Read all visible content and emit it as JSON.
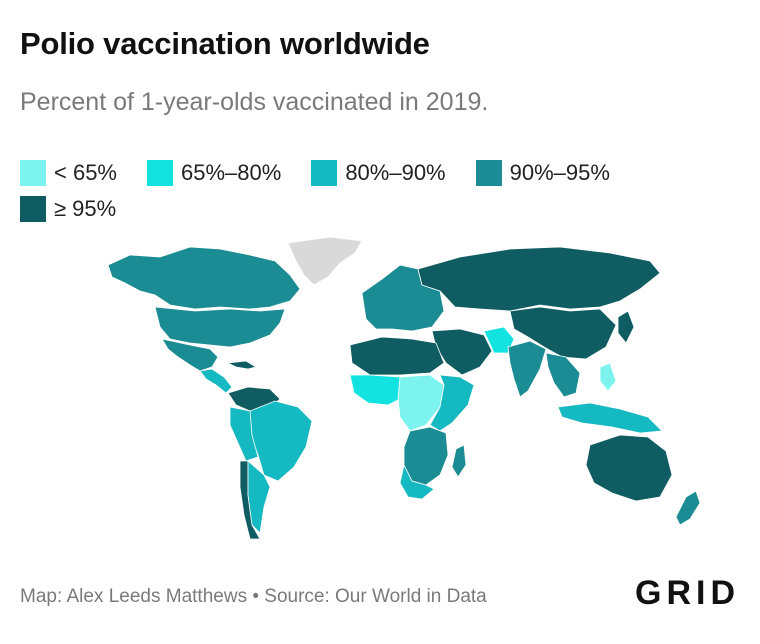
{
  "title": "Polio vaccination worldwide",
  "subtitle": "Percent of 1-year-olds vaccinated in 2019.",
  "legend": {
    "items": [
      {
        "label": "< 65%",
        "color": "#7df3ef"
      },
      {
        "label": "65%–80%",
        "color": "#13e3e0"
      },
      {
        "label": "80%–90%",
        "color": "#14b9c1"
      },
      {
        "label": "90%–95%",
        "color": "#1b8c93"
      },
      {
        "label": "≥ 95%",
        "color": "#0f5c62"
      }
    ]
  },
  "no_data_color": "#d9d9d9",
  "footer": {
    "credit": "Map: Alex Leeds Matthews • Source: Our World in Data"
  },
  "brand": "GRID"
}
